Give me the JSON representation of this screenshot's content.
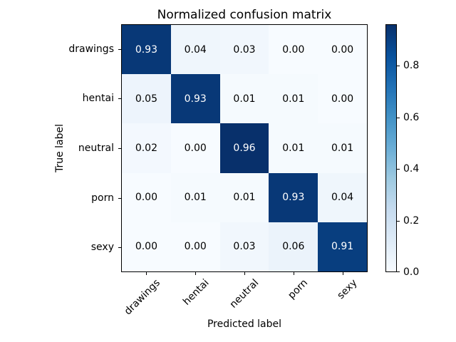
{
  "figure": {
    "title": "Normalized confusion matrix",
    "xlabel": "Predicted label",
    "ylabel": "True label"
  },
  "chart_data": {
    "type": "heatmap",
    "title": "Normalized confusion matrix",
    "xlabel": "Predicted label",
    "ylabel": "True label",
    "x_categories": [
      "drawings",
      "hentai",
      "neutral",
      "porn",
      "sexy"
    ],
    "y_categories": [
      "drawings",
      "hentai",
      "neutral",
      "porn",
      "sexy"
    ],
    "matrix": [
      [
        0.93,
        0.04,
        0.03,
        0.0,
        0.0
      ],
      [
        0.05,
        0.93,
        0.01,
        0.01,
        0.0
      ],
      [
        0.02,
        0.0,
        0.96,
        0.01,
        0.01
      ],
      [
        0.0,
        0.01,
        0.01,
        0.93,
        0.04
      ],
      [
        0.0,
        0.0,
        0.03,
        0.06,
        0.91
      ]
    ],
    "value_decimals": 2,
    "vmin": 0.0,
    "vmax": 0.96,
    "colormap": "Blues",
    "colorbar_ticks": [
      0.0,
      0.2,
      0.4,
      0.6,
      0.8
    ],
    "colorbar_tick_decimals": 1,
    "colorbar_position": "right",
    "grid": false
  },
  "colors": {
    "background": "#ffffff",
    "axes_edge": "#000000",
    "text": "#000000",
    "cell_text_dark": "#000000",
    "cell_text_light": "#ffffff",
    "colormap_min": "#f7fbff",
    "colormap_max": "#08306b",
    "blues_stops": [
      "#f7fbff",
      "#deebf7",
      "#c6dbef",
      "#9ecae1",
      "#6baed6",
      "#4292c6",
      "#2171b5",
      "#08519c",
      "#08306b"
    ]
  }
}
